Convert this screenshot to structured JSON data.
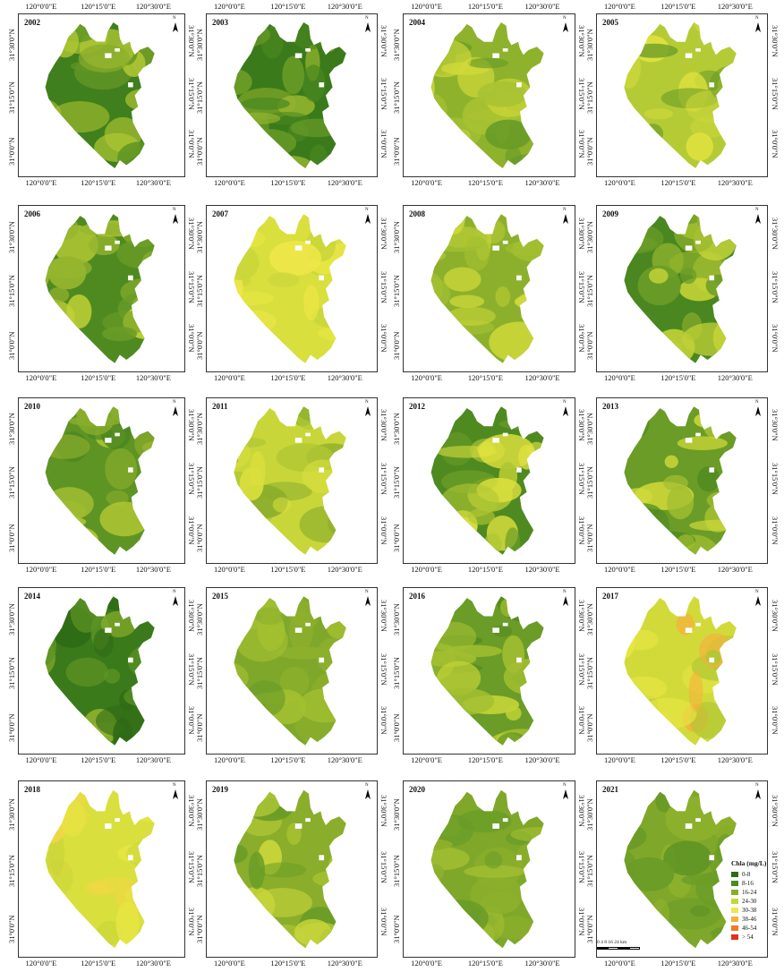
{
  "panels": [
    {
      "year": "2002",
      "colors": [
        "#3f7f1d",
        "#5e9424",
        "#8aad2b",
        "#b0c734"
      ],
      "seed": 1
    },
    {
      "year": "2003",
      "colors": [
        "#3b7a1b",
        "#4a8720",
        "#6a9c27",
        "#95b52e"
      ],
      "seed": 2
    },
    {
      "year": "2004",
      "colors": [
        "#8eb22c",
        "#a8c232",
        "#6a9c27",
        "#d2da3a"
      ],
      "seed": 3
    },
    {
      "year": "2005",
      "colors": [
        "#b5cb35",
        "#c9d63a",
        "#6a9c27",
        "#e0e23f"
      ],
      "seed": 4
    },
    {
      "year": "2006",
      "colors": [
        "#4f8a21",
        "#6a9c27",
        "#95b52e",
        "#c2d237"
      ],
      "seed": 5
    },
    {
      "year": "2007",
      "colors": [
        "#d9df3d",
        "#e6e642",
        "#c9d63a",
        "#f0e74a"
      ],
      "seed": 6
    },
    {
      "year": "2008",
      "colors": [
        "#8db02c",
        "#a3bf31",
        "#b8cc35",
        "#cfd93a"
      ],
      "seed": 7
    },
    {
      "year": "2009",
      "colors": [
        "#4a8720",
        "#6a9c27",
        "#95b52e",
        "#c2d237"
      ],
      "seed": 8
    },
    {
      "year": "2010",
      "colors": [
        "#5e9424",
        "#4a8720",
        "#8aad2b",
        "#b0c734"
      ],
      "seed": 9
    },
    {
      "year": "2011",
      "colors": [
        "#c9d63a",
        "#d9df3d",
        "#8aad2b",
        "#b0c734"
      ],
      "seed": 10
    },
    {
      "year": "2012",
      "colors": [
        "#4f8a21",
        "#6a9c27",
        "#b0c734",
        "#e0e23f"
      ],
      "seed": 11
    },
    {
      "year": "2013",
      "colors": [
        "#6a9c27",
        "#4f8a21",
        "#a3bf31",
        "#d2da3a"
      ],
      "seed": 12
    },
    {
      "year": "2014",
      "colors": [
        "#3b7a1b",
        "#2f6a16",
        "#5e9424",
        "#95b52e"
      ],
      "seed": 13
    },
    {
      "year": "2015",
      "colors": [
        "#7fa82a",
        "#8db02c",
        "#6a9c27",
        "#a3bf31"
      ],
      "seed": 14
    },
    {
      "year": "2016",
      "colors": [
        "#6a9c27",
        "#4f8a21",
        "#a3bf31",
        "#c2d237"
      ],
      "seed": 15
    },
    {
      "year": "2017",
      "colors": [
        "#d2da3a",
        "#e6e642",
        "#b0c734",
        "#f4b23c"
      ],
      "seed": 16
    },
    {
      "year": "2018",
      "colors": [
        "#d9df3d",
        "#e6e642",
        "#c9d63a",
        "#f0d845"
      ],
      "seed": 17
    },
    {
      "year": "2019",
      "colors": [
        "#8aad2b",
        "#6a9c27",
        "#b0c734",
        "#c9d63a"
      ],
      "seed": 18
    },
    {
      "year": "2020",
      "colors": [
        "#7fa82a",
        "#8db02c",
        "#6a9c27",
        "#a3bf31"
      ],
      "seed": 19
    },
    {
      "year": "2021",
      "colors": [
        "#7fa82a",
        "#8db02c",
        "#6a9c27",
        "#5e9424"
      ],
      "seed": 20
    }
  ],
  "axis": {
    "lon": [
      "120°0'0\"E",
      "120°15'0\"E",
      "120°30'0\"E"
    ],
    "lat": [
      "31°30'0\"N",
      "31°15'0\"N",
      "31°0'0\"N"
    ]
  },
  "north_label": "N",
  "legend": {
    "title": "Chla (mg/L)",
    "items": [
      {
        "label": "0-8",
        "color": "#2f6a16"
      },
      {
        "label": "8-16",
        "color": "#4f8a21"
      },
      {
        "label": "16-24",
        "color": "#8aad2b"
      },
      {
        "label": "24-30",
        "color": "#c9d63a"
      },
      {
        "label": "30-38",
        "color": "#f0e74a"
      },
      {
        "label": "38-46",
        "color": "#f4b23c"
      },
      {
        "label": "46-54",
        "color": "#ee7a2c"
      },
      {
        "label": "> 54",
        "color": "#e0301e"
      }
    ]
  },
  "scalebar": {
    "labels": "0  4  8    16    24",
    "unit": "km"
  }
}
